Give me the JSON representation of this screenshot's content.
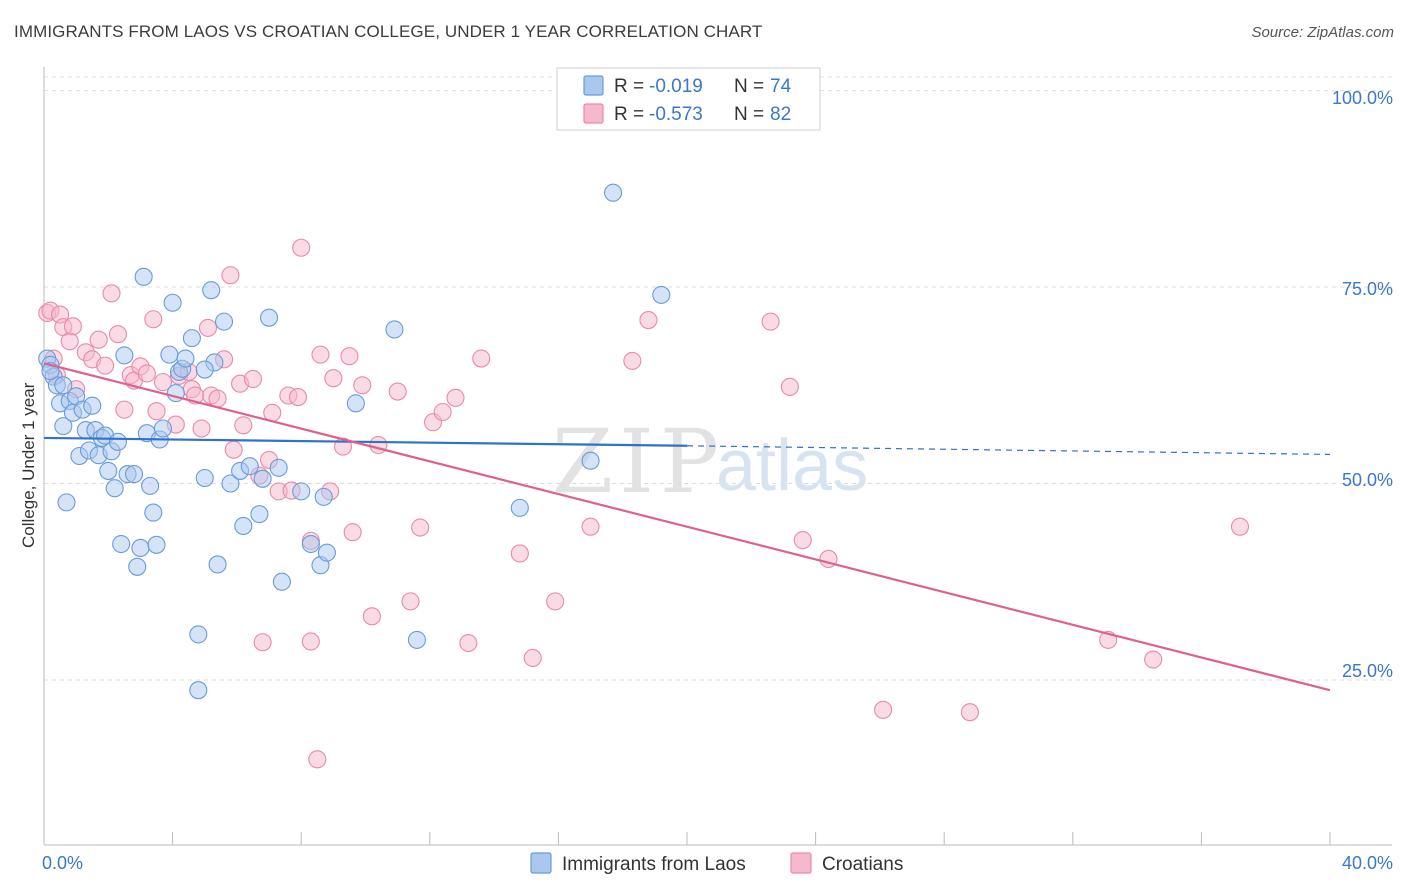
{
  "header": {
    "title": "IMMIGRANTS FROM LAOS VS CROATIAN COLLEGE, UNDER 1 YEAR CORRELATION CHART",
    "source": "Source: ZipAtlas.com"
  },
  "watermark": {
    "zip": "ZIP",
    "atlas": "atlas"
  },
  "stats": {
    "laos": {
      "r_label": "R =",
      "r_value": "-0.019",
      "n_label": "N =",
      "n_value": "74"
    },
    "croatians": {
      "r_label": "R =",
      "r_value": "-0.573",
      "n_label": "N =",
      "n_value": "82"
    }
  },
  "colors": {
    "laos_fill": "#a9c7ef",
    "laos_stroke": "#6a9bd8",
    "laos_line": "#2f72c9",
    "cro_fill": "#f5b8cc",
    "cro_stroke": "#e88aa8",
    "cro_line": "#e0608c",
    "grid": "#dddddd",
    "tick_text": "#3a78c9"
  },
  "chart_data": {
    "type": "scatter",
    "title": "IMMIGRANTS FROM LAOS VS CROATIAN COLLEGE, UNDER 1 YEAR CORRELATION CHART",
    "xlabel": "",
    "ylabel": "College, Under 1 year",
    "xlim": [
      0,
      40
    ],
    "ylim": [
      4,
      103
    ],
    "x_tick_labels": [
      "0.0%",
      "40.0%"
    ],
    "y_ticks": [
      25,
      50,
      75,
      100
    ],
    "y_tick_labels": [
      "25.0%",
      "50.0%",
      "75.0%",
      "100.0%"
    ],
    "grid": true,
    "legend_position": "bottom-center",
    "series": [
      {
        "name": "Immigrants from Laos",
        "r": -0.019,
        "n": 74,
        "trend": {
          "x0": 0,
          "y0": 55.8,
          "x1": 20,
          "y1": 54.8,
          "dashed_to_x": 40,
          "dashed_to_y": 53.7
        },
        "points": [
          [
            0.1,
            65.9
          ],
          [
            0.2,
            65.1
          ],
          [
            0.3,
            63.6
          ],
          [
            0.4,
            62.5
          ],
          [
            0.5,
            60.2
          ],
          [
            0.6,
            57.3
          ],
          [
            0.6,
            62.5
          ],
          [
            0.7,
            47.6
          ],
          [
            0.8,
            60.5
          ],
          [
            0.9,
            59.0
          ],
          [
            1.0,
            61.1
          ],
          [
            1.1,
            53.5
          ],
          [
            1.2,
            59.4
          ],
          [
            1.3,
            56.8
          ],
          [
            1.4,
            54.2
          ],
          [
            1.5,
            59.9
          ],
          [
            1.6,
            56.8
          ],
          [
            1.7,
            53.6
          ],
          [
            1.8,
            55.8
          ],
          [
            1.9,
            56.1
          ],
          [
            2.0,
            51.6
          ],
          [
            2.1,
            54.1
          ],
          [
            2.2,
            49.4
          ],
          [
            2.3,
            55.3
          ],
          [
            2.4,
            42.3
          ],
          [
            2.5,
            66.3
          ],
          [
            2.6,
            51.2
          ],
          [
            2.8,
            51.2
          ],
          [
            2.9,
            39.4
          ],
          [
            3.0,
            41.8
          ],
          [
            3.1,
            76.3
          ],
          [
            3.2,
            56.4
          ],
          [
            3.3,
            49.7
          ],
          [
            3.4,
            46.3
          ],
          [
            3.5,
            42.2
          ],
          [
            3.6,
            55.6
          ],
          [
            3.7,
            57.0
          ],
          [
            3.9,
            66.4
          ],
          [
            4.0,
            73.0
          ],
          [
            4.1,
            61.5
          ],
          [
            4.2,
            64.2
          ],
          [
            4.3,
            64.6
          ],
          [
            4.4,
            65.9
          ],
          [
            4.6,
            68.5
          ],
          [
            4.8,
            30.8
          ],
          [
            4.8,
            23.7
          ],
          [
            5.0,
            50.7
          ],
          [
            5.2,
            74.6
          ],
          [
            5.3,
            65.4
          ],
          [
            5.4,
            39.7
          ],
          [
            5.6,
            70.6
          ],
          [
            5.8,
            50.0
          ],
          [
            6.1,
            51.6
          ],
          [
            6.2,
            44.6
          ],
          [
            6.4,
            52.2
          ],
          [
            6.7,
            46.1
          ],
          [
            6.8,
            50.6
          ],
          [
            7.0,
            71.1
          ],
          [
            7.3,
            52.0
          ],
          [
            7.4,
            37.5
          ],
          [
            8.0,
            49.0
          ],
          [
            8.3,
            42.3
          ],
          [
            8.6,
            39.6
          ],
          [
            8.7,
            48.3
          ],
          [
            8.8,
            41.2
          ],
          [
            9.7,
            60.2
          ],
          [
            10.9,
            69.6
          ],
          [
            11.6,
            30.1
          ],
          [
            14.8,
            46.9
          ],
          [
            17.0,
            52.9
          ],
          [
            17.7,
            87.0
          ],
          [
            19.2,
            74.0
          ],
          [
            5.0,
            64.5
          ],
          [
            0.2,
            64.3
          ]
        ]
      },
      {
        "name": "Croatians",
        "r": -0.573,
        "n": 82,
        "trend": {
          "x0": 0,
          "y0": 65.3,
          "x1": 40,
          "y1": 23.7
        },
        "points": [
          [
            0.1,
            71.7
          ],
          [
            0.2,
            72.0
          ],
          [
            0.3,
            65.9
          ],
          [
            0.4,
            63.8
          ],
          [
            0.5,
            71.5
          ],
          [
            0.6,
            69.9
          ],
          [
            0.8,
            68.1
          ],
          [
            0.9,
            70.0
          ],
          [
            1.0,
            62.0
          ],
          [
            1.3,
            66.7
          ],
          [
            1.5,
            65.8
          ],
          [
            1.7,
            68.3
          ],
          [
            1.9,
            65.0
          ],
          [
            2.1,
            74.2
          ],
          [
            2.3,
            69.0
          ],
          [
            2.5,
            59.4
          ],
          [
            2.7,
            63.8
          ],
          [
            2.8,
            63.1
          ],
          [
            3.0,
            64.9
          ],
          [
            3.2,
            64.0
          ],
          [
            3.4,
            70.9
          ],
          [
            3.5,
            59.2
          ],
          [
            3.7,
            62.9
          ],
          [
            4.1,
            57.5
          ],
          [
            4.2,
            63.7
          ],
          [
            4.5,
            64.2
          ],
          [
            4.6,
            62.0
          ],
          [
            4.7,
            61.2
          ],
          [
            4.9,
            57.0
          ],
          [
            5.1,
            69.8
          ],
          [
            5.2,
            61.2
          ],
          [
            5.4,
            60.8
          ],
          [
            5.6,
            65.8
          ],
          [
            5.8,
            76.5
          ],
          [
            5.9,
            54.3
          ],
          [
            6.1,
            62.7
          ],
          [
            6.2,
            57.4
          ],
          [
            6.5,
            63.3
          ],
          [
            6.7,
            51.0
          ],
          [
            6.8,
            29.8
          ],
          [
            7.0,
            53.0
          ],
          [
            7.1,
            59.0
          ],
          [
            7.3,
            49.0
          ],
          [
            7.6,
            61.2
          ],
          [
            7.7,
            49.1
          ],
          [
            7.9,
            61.0
          ],
          [
            8.0,
            80.0
          ],
          [
            8.3,
            42.7
          ],
          [
            8.3,
            29.9
          ],
          [
            8.6,
            66.4
          ],
          [
            8.9,
            49.0
          ],
          [
            9.0,
            63.4
          ],
          [
            9.3,
            54.7
          ],
          [
            9.5,
            66.2
          ],
          [
            9.6,
            43.8
          ],
          [
            9.9,
            62.5
          ],
          [
            10.2,
            33.1
          ],
          [
            10.4,
            54.9
          ],
          [
            11.0,
            61.7
          ],
          [
            11.4,
            35.0
          ],
          [
            11.7,
            44.4
          ],
          [
            12.1,
            57.8
          ],
          [
            12.4,
            59.1
          ],
          [
            12.8,
            60.9
          ],
          [
            13.2,
            29.7
          ],
          [
            13.6,
            65.9
          ],
          [
            14.8,
            41.1
          ],
          [
            15.2,
            27.8
          ],
          [
            15.9,
            35.0
          ],
          [
            17.0,
            44.5
          ],
          [
            18.3,
            65.6
          ],
          [
            18.8,
            70.8
          ],
          [
            22.6,
            70.6
          ],
          [
            23.2,
            62.3
          ],
          [
            23.6,
            42.8
          ],
          [
            24.4,
            40.4
          ],
          [
            26.1,
            21.2
          ],
          [
            28.8,
            20.9
          ],
          [
            33.1,
            30.1
          ],
          [
            34.5,
            27.6
          ],
          [
            37.2,
            44.5
          ],
          [
            8.5,
            14.9
          ]
        ]
      }
    ]
  },
  "legend": {
    "items": [
      {
        "label": "Immigrants from Laos"
      },
      {
        "label": "Croatians"
      }
    ]
  }
}
